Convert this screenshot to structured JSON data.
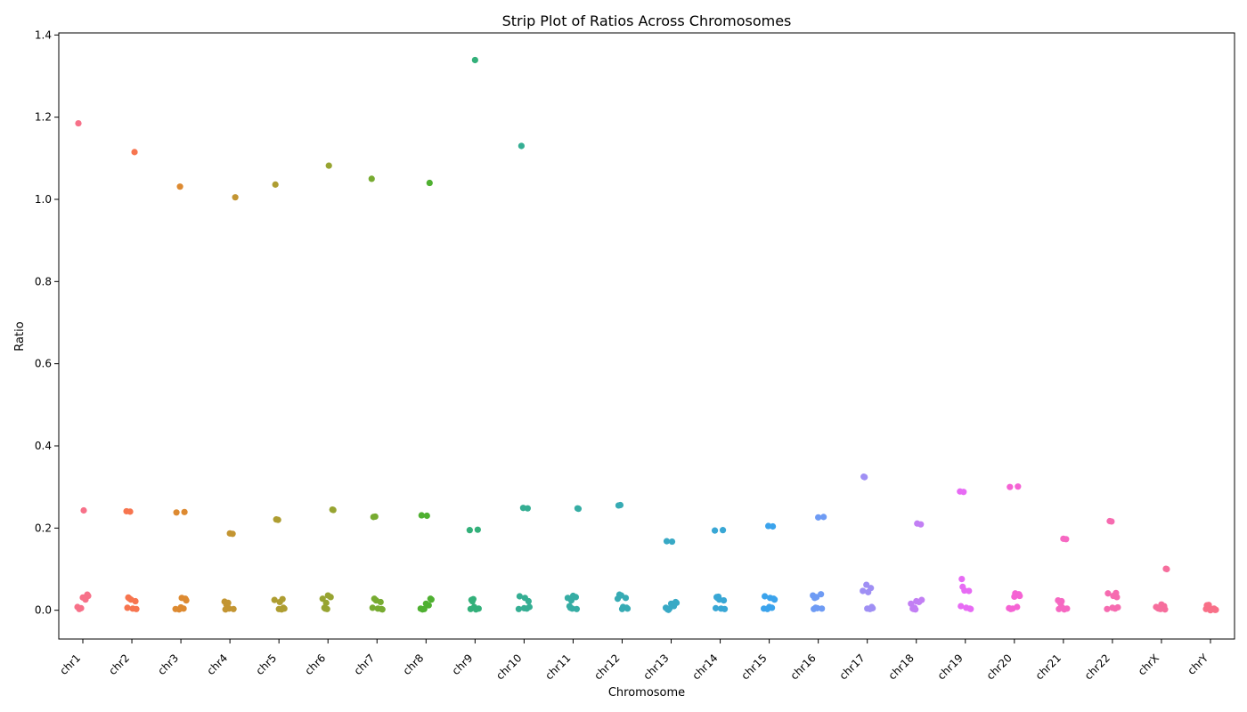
{
  "chart_data": {
    "type": "scatter",
    "title": "Strip Plot of Ratios Across Chromosomes",
    "xlabel": "Chromosome",
    "ylabel": "Ratio",
    "ylim": [
      -0.07,
      1.405
    ],
    "yticks": [
      "0.0",
      "0.2",
      "0.4",
      "0.6",
      "0.8",
      "1.0",
      "1.2",
      "1.4"
    ],
    "ytick_values": [
      0,
      0.2,
      0.4,
      0.6,
      0.8,
      1.0,
      1.2,
      1.4
    ],
    "grid": false,
    "legend": false,
    "categories": [
      "chr1",
      "chr2",
      "chr3",
      "chr4",
      "chr5",
      "chr6",
      "chr7",
      "chr8",
      "chr9",
      "chr10",
      "chr11",
      "chr12",
      "chr13",
      "chr14",
      "chr15",
      "chr16",
      "chr17",
      "chr18",
      "chr19",
      "chr20",
      "chr21",
      "chr22",
      "chrX",
      "chrY"
    ],
    "colors": [
      "#f77189",
      "#f7754f",
      "#dd8a31",
      "#c39532",
      "#ae9d31",
      "#97a431",
      "#77ab31",
      "#4fb031",
      "#33b07a",
      "#35ae93",
      "#36ada4",
      "#37abb4",
      "#38a9c5",
      "#39a7d5",
      "#3ba3ec",
      "#6e9bf4",
      "#9f8ff4",
      "#c27ff4",
      "#e76bf4",
      "#f563d4",
      "#f668c2",
      "#f66bb0",
      "#f66e9d",
      "#f87088"
    ],
    "series": [
      {
        "category": "chr1",
        "values": [
          1.185,
          0.243,
          0.038,
          0.035,
          0.031,
          0.026,
          0.008,
          0.005,
          0.003
        ]
      },
      {
        "category": "chr2",
        "values": [
          1.115,
          0.241,
          0.24,
          0.031,
          0.029,
          0.026,
          0.022,
          0.006,
          0.004,
          0.003
        ]
      },
      {
        "category": "chr3",
        "values": [
          1.031,
          0.239,
          0.238,
          0.03,
          0.028,
          0.024,
          0.007,
          0.004,
          0.003,
          0.002
        ]
      },
      {
        "category": "chr4",
        "values": [
          1.005,
          0.187,
          0.186,
          0.021,
          0.018,
          0.014,
          0.01,
          0.004,
          0.003,
          0.002
        ]
      },
      {
        "category": "chr5",
        "values": [
          1.036,
          0.221,
          0.22,
          0.027,
          0.025,
          0.02,
          0.006,
          0.004,
          0.003,
          0.002
        ]
      },
      {
        "category": "chr6",
        "values": [
          1.082,
          0.245,
          0.244,
          0.036,
          0.032,
          0.028,
          0.018,
          0.006,
          0.004,
          0.003
        ]
      },
      {
        "category": "chr7",
        "values": [
          1.05,
          0.228,
          0.227,
          0.028,
          0.024,
          0.02,
          0.006,
          0.004,
          0.003,
          0.002
        ]
      },
      {
        "category": "chr8",
        "values": [
          1.04,
          0.231,
          0.23,
          0.028,
          0.026,
          0.016,
          0.012,
          0.004,
          0.003,
          0.002
        ]
      },
      {
        "category": "chr9",
        "values": [
          1.339,
          0.196,
          0.195,
          0.027,
          0.025,
          0.022,
          0.008,
          0.004,
          0.003,
          0.002
        ]
      },
      {
        "category": "chr10",
        "values": [
          1.13,
          0.249,
          0.248,
          0.034,
          0.03,
          0.022,
          0.008,
          0.005,
          0.004,
          0.003
        ]
      },
      {
        "category": "chr11",
        "values": [
          0.248,
          0.247,
          0.035,
          0.032,
          0.03,
          0.024,
          0.01,
          0.006,
          0.004,
          0.003
        ]
      },
      {
        "category": "chr12",
        "values": [
          0.256,
          0.255,
          0.038,
          0.036,
          0.03,
          0.028,
          0.008,
          0.006,
          0.004,
          0.003
        ]
      },
      {
        "category": "chr13",
        "values": [
          0.168,
          0.167,
          0.02,
          0.018,
          0.016,
          0.01,
          0.006,
          0.004,
          0.002,
          0.001
        ]
      },
      {
        "category": "chr14",
        "values": [
          0.195,
          0.194,
          0.033,
          0.032,
          0.03,
          0.026,
          0.024,
          0.005,
          0.004,
          0.003
        ]
      },
      {
        "category": "chr15",
        "values": [
          0.205,
          0.204,
          0.034,
          0.03,
          0.028,
          0.026,
          0.008,
          0.006,
          0.004,
          0.003
        ]
      },
      {
        "category": "chr16",
        "values": [
          0.227,
          0.226,
          0.039,
          0.036,
          0.032,
          0.03,
          0.006,
          0.005,
          0.004,
          0.003
        ]
      },
      {
        "category": "chr17",
        "values": [
          0.325,
          0.324,
          0.062,
          0.054,
          0.047,
          0.044,
          0.008,
          0.005,
          0.004,
          0.003
        ]
      },
      {
        "category": "chr18",
        "values": [
          0.211,
          0.209,
          0.025,
          0.022,
          0.02,
          0.016,
          0.006,
          0.004,
          0.003,
          0.002
        ]
      },
      {
        "category": "chr19",
        "values": [
          0.289,
          0.288,
          0.076,
          0.057,
          0.048,
          0.047,
          0.01,
          0.006,
          0.004,
          0.003
        ]
      },
      {
        "category": "chr20",
        "values": [
          0.301,
          0.3,
          0.041,
          0.039,
          0.035,
          0.033,
          0.008,
          0.005,
          0.004,
          0.003
        ]
      },
      {
        "category": "chr21",
        "values": [
          0.174,
          0.173,
          0.024,
          0.022,
          0.02,
          0.016,
          0.006,
          0.004,
          0.003,
          0.002
        ]
      },
      {
        "category": "chr22",
        "values": [
          0.217,
          0.216,
          0.042,
          0.041,
          0.035,
          0.032,
          0.007,
          0.006,
          0.004,
          0.003
        ]
      },
      {
        "category": "chrX",
        "values": [
          0.101,
          0.1,
          0.014,
          0.01,
          0.008,
          0.006,
          0.005,
          0.004,
          0.003,
          0.002
        ]
      },
      {
        "category": "chrY",
        "values": [
          0.013,
          0.012,
          0.009,
          0.006,
          0.004,
          0.003,
          0.002,
          0.001,
          0.001,
          0.0
        ]
      }
    ]
  }
}
